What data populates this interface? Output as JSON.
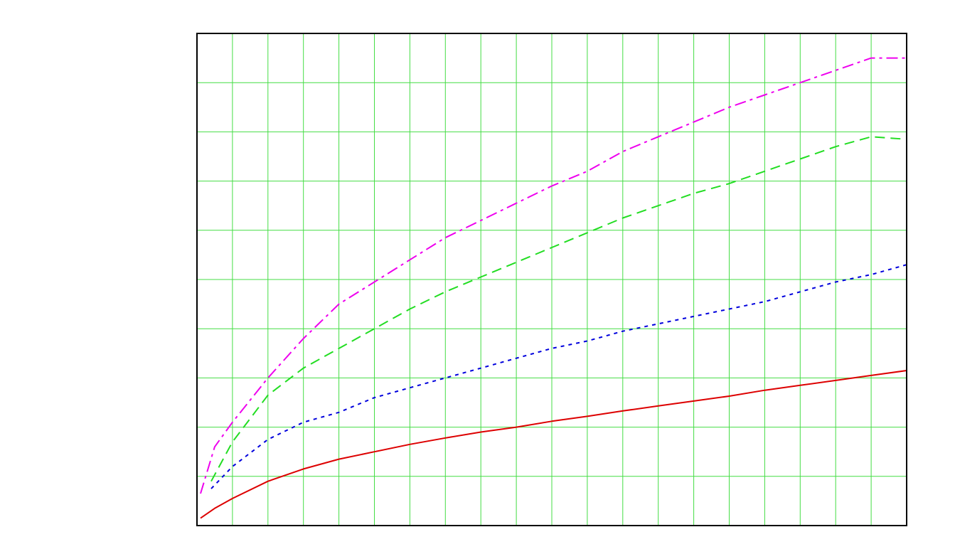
{
  "chart_data": {
    "type": "line",
    "title": "",
    "xlabel": "",
    "ylabel": "",
    "xlim": [
      0,
      20
    ],
    "ylim": [
      0,
      10
    ],
    "grid": true,
    "grid_x_step": 1,
    "grid_y_step": 1,
    "grid_color": "#44dd44",
    "frame_color": "#000000",
    "series": [
      {
        "color": "#dd0000",
        "dash": "solid",
        "x": [
          0.1,
          0.5,
          1,
          2,
          3,
          4,
          5,
          6,
          7,
          8,
          9,
          10,
          11,
          12,
          13,
          14,
          15,
          16,
          17,
          18,
          19,
          20
        ],
        "y": [
          0.15,
          0.35,
          0.55,
          0.9,
          1.15,
          1.35,
          1.5,
          1.65,
          1.78,
          1.9,
          2.0,
          2.12,
          2.22,
          2.33,
          2.43,
          2.53,
          2.63,
          2.75,
          2.85,
          2.95,
          3.05,
          3.15
        ]
      },
      {
        "color": "#0000dd",
        "dash": "dotted",
        "x": [
          0.4,
          1,
          2,
          3,
          4,
          5,
          6,
          7,
          8,
          9,
          10,
          11,
          12,
          13,
          14,
          15,
          16,
          17,
          18,
          19,
          20
        ],
        "y": [
          0.75,
          1.2,
          1.75,
          2.1,
          2.3,
          2.6,
          2.8,
          3.0,
          3.2,
          3.4,
          3.6,
          3.75,
          3.95,
          4.1,
          4.25,
          4.4,
          4.55,
          4.75,
          4.95,
          5.1,
          5.3
        ]
      },
      {
        "color": "#22dd22",
        "dash": "dashed",
        "x": [
          0.4,
          1,
          2,
          3,
          4,
          5,
          6,
          7,
          8,
          9,
          10,
          11,
          12,
          13,
          14,
          15,
          16,
          17,
          18,
          19,
          20
        ],
        "y": [
          0.9,
          1.7,
          2.65,
          3.2,
          3.6,
          4.0,
          4.4,
          4.75,
          5.05,
          5.35,
          5.65,
          5.95,
          6.25,
          6.5,
          6.75,
          6.95,
          7.2,
          7.45,
          7.7,
          7.9,
          7.85
        ]
      },
      {
        "color": "#ee00ee",
        "dash": "dashdot",
        "x": [
          0.1,
          0.5,
          1,
          2,
          3,
          4,
          5,
          6,
          7,
          8,
          9,
          10,
          11,
          12,
          13,
          14,
          15,
          16,
          17,
          18,
          19,
          20
        ],
        "y": [
          0.65,
          1.6,
          2.1,
          3.0,
          3.8,
          4.5,
          4.95,
          5.4,
          5.85,
          6.2,
          6.55,
          6.9,
          7.2,
          7.6,
          7.9,
          8.2,
          8.5,
          8.75,
          9.0,
          9.25,
          9.5,
          9.5
        ]
      }
    ]
  }
}
